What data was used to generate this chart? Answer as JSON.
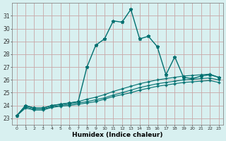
{
  "title": "",
  "xlabel": "Humidex (Indice chaleur)",
  "ylabel": "",
  "background_color": "#d8f0f0",
  "grid_color": "#c8a8a8",
  "line_color": "#007070",
  "xlim": [
    -0.5,
    23.5
  ],
  "ylim": [
    22.5,
    32.0
  ],
  "yticks": [
    23,
    24,
    25,
    26,
    27,
    28,
    29,
    30,
    31
  ],
  "xticks": [
    0,
    1,
    2,
    3,
    4,
    5,
    6,
    7,
    8,
    9,
    10,
    11,
    12,
    13,
    14,
    15,
    16,
    17,
    18,
    19,
    20,
    21,
    22,
    23
  ],
  "series": [
    {
      "x": [
        0,
        1,
        2,
        3,
        4,
        5,
        6,
        7,
        8,
        9,
        10,
        11,
        12,
        13,
        14,
        15,
        16,
        17,
        18,
        19,
        20,
        21,
        22,
        23
      ],
      "y": [
        23.2,
        24.0,
        23.8,
        23.8,
        24.0,
        24.1,
        24.2,
        24.3,
        27.0,
        28.7,
        29.2,
        30.6,
        30.5,
        31.5,
        29.2,
        29.4,
        28.6,
        26.4,
        27.8,
        26.2,
        26.1,
        26.3,
        26.4,
        26.2
      ],
      "marker": "*",
      "markersize": 3.5,
      "linewidth": 1.0
    },
    {
      "x": [
        0,
        1,
        2,
        3,
        4,
        5,
        6,
        7,
        8,
        9,
        10,
        11,
        12,
        13,
        14,
        15,
        16,
        17,
        18,
        19,
        20,
        21,
        22,
        23
      ],
      "y": [
        23.2,
        24.0,
        23.8,
        23.8,
        24.0,
        24.1,
        24.2,
        24.3,
        24.5,
        24.65,
        24.85,
        25.1,
        25.3,
        25.5,
        25.7,
        25.85,
        26.0,
        26.1,
        26.2,
        26.3,
        26.35,
        26.4,
        26.45,
        26.2
      ],
      "marker": "+",
      "markersize": 3.0,
      "linewidth": 0.8
    },
    {
      "x": [
        0,
        1,
        2,
        3,
        4,
        5,
        6,
        7,
        8,
        9,
        10,
        11,
        12,
        13,
        14,
        15,
        16,
        17,
        18,
        19,
        20,
        21,
        22,
        23
      ],
      "y": [
        23.2,
        23.9,
        23.7,
        23.7,
        23.9,
        24.0,
        24.1,
        24.2,
        24.3,
        24.45,
        24.6,
        24.82,
        25.0,
        25.2,
        25.4,
        25.55,
        25.7,
        25.8,
        25.9,
        26.0,
        26.05,
        26.1,
        26.15,
        26.0
      ],
      "marker": "+",
      "markersize": 3.0,
      "linewidth": 0.8
    },
    {
      "x": [
        0,
        1,
        2,
        3,
        4,
        5,
        6,
        7,
        8,
        9,
        10,
        11,
        12,
        13,
        14,
        15,
        16,
        17,
        18,
        19,
        20,
        21,
        22,
        23
      ],
      "y": [
        23.2,
        23.8,
        23.65,
        23.65,
        23.85,
        23.95,
        24.0,
        24.1,
        24.2,
        24.3,
        24.5,
        24.7,
        24.85,
        25.0,
        25.2,
        25.35,
        25.5,
        25.6,
        25.7,
        25.8,
        25.85,
        25.9,
        25.95,
        25.8
      ],
      "marker": "+",
      "markersize": 3.0,
      "linewidth": 0.8
    }
  ]
}
